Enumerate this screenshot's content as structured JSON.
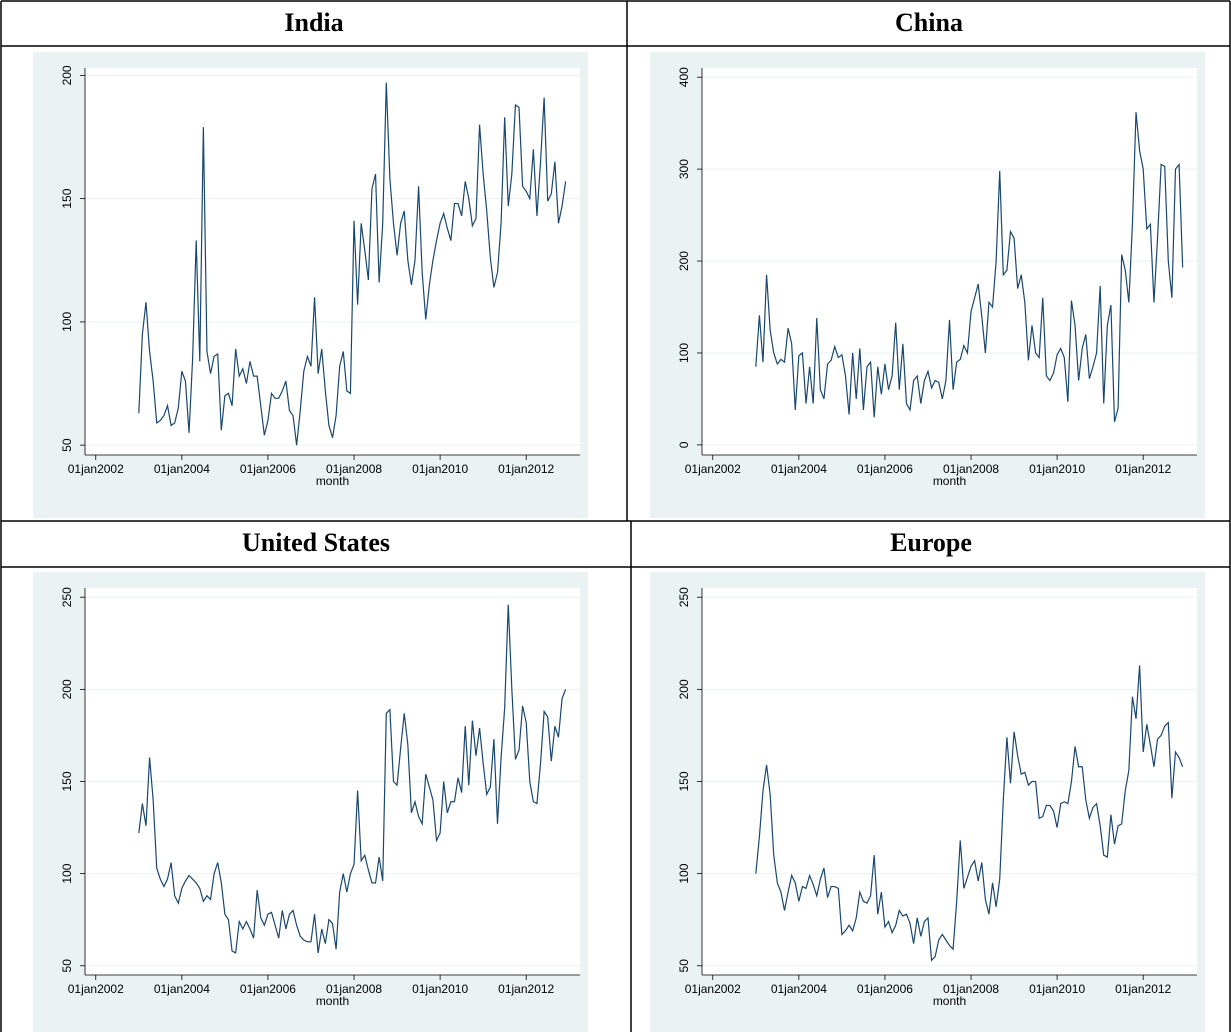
{
  "chart_data": [
    {
      "type": "line",
      "title": "India",
      "x_label": "month",
      "color": "#1a476f",
      "grid": true,
      "xlim": [
        "01oct2001",
        "01apr2013"
      ],
      "xticks": [
        "01jan2002",
        "01jan2004",
        "01jan2006",
        "01jan2008",
        "01jan2010",
        "01jan2012"
      ],
      "ylim": [
        46,
        203
      ],
      "yticks": [
        50,
        100,
        150,
        200
      ],
      "x": [
        "01jan2003",
        "01feb2003",
        "01mar2003",
        "01apr2003",
        "01may2003",
        "01jun2003",
        "01jul2003",
        "01aug2003",
        "01sep2003",
        "01oct2003",
        "01nov2003",
        "01dec2003",
        "01jan2004",
        "01feb2004",
        "01mar2004",
        "01apr2004",
        "01may2004",
        "01jun2004",
        "01jul2004",
        "01aug2004",
        "01sep2004",
        "01oct2004",
        "01nov2004",
        "01dec2004",
        "01jan2005",
        "01feb2005",
        "01mar2005",
        "01apr2005",
        "01may2005",
        "01jun2005",
        "01jul2005",
        "01aug2005",
        "01sep2005",
        "01oct2005",
        "01nov2005",
        "01dec2005",
        "01jan2006",
        "01feb2006",
        "01mar2006",
        "01apr2006",
        "01may2006",
        "01jun2006",
        "01jul2006",
        "01aug2006",
        "01sep2006",
        "01oct2006",
        "01nov2006",
        "01dec2006",
        "01jan2007",
        "01feb2007",
        "01mar2007",
        "01apr2007",
        "01may2007",
        "01jun2007",
        "01jul2007",
        "01aug2007",
        "01sep2007",
        "01oct2007",
        "01nov2007",
        "01dec2007",
        "01jan2008",
        "01feb2008",
        "01mar2008",
        "01apr2008",
        "01may2008",
        "01jun2008",
        "01jul2008",
        "01aug2008",
        "01sep2008",
        "01oct2008",
        "01nov2008",
        "01dec2008",
        "01jan2009",
        "01feb2009",
        "01mar2009",
        "01apr2009",
        "01may2009",
        "01jun2009",
        "01jul2009",
        "01aug2009",
        "01sep2009",
        "01oct2009",
        "01nov2009",
        "01dec2009",
        "01jan2010",
        "01feb2010",
        "01mar2010",
        "01apr2010",
        "01may2010",
        "01jun2010",
        "01jul2010",
        "01aug2010",
        "01sep2010",
        "01oct2010",
        "01nov2010",
        "01dec2010",
        "01jan2011",
        "01feb2011",
        "01mar2011",
        "01apr2011",
        "01may2011",
        "01jun2011",
        "01jul2011",
        "01aug2011",
        "01sep2011",
        "01oct2011",
        "01nov2011",
        "01dec2011",
        "01jan2012",
        "01feb2012",
        "01mar2012",
        "01apr2012",
        "01may2012",
        "01jun2012",
        "01jul2012",
        "01aug2012",
        "01sep2012",
        "01oct2012",
        "01nov2012",
        "01dec2012"
      ],
      "values": [
        63,
        95,
        108,
        88,
        76,
        59,
        60,
        62,
        66,
        58,
        59,
        65,
        80,
        76,
        55,
        85,
        133,
        84,
        179,
        88,
        79,
        86,
        87,
        56,
        70,
        71,
        66,
        89,
        78,
        81,
        75,
        84,
        78,
        78,
        66,
        54,
        60,
        71,
        69,
        69,
        72,
        76,
        64,
        62,
        50,
        64,
        80,
        86,
        82,
        110,
        79,
        89,
        72,
        58,
        53,
        62,
        82,
        88,
        72,
        71,
        141,
        107,
        140,
        129,
        117,
        154,
        160,
        116,
        140,
        197,
        158,
        140,
        127,
        140,
        145,
        125,
        115,
        125,
        155,
        120,
        101,
        115,
        125,
        133,
        140,
        144,
        138,
        133,
        148,
        148,
        143,
        157,
        150,
        139,
        142,
        180,
        160,
        145,
        126,
        114,
        120,
        140,
        183,
        147,
        160,
        188,
        187,
        155,
        153,
        150,
        170,
        143,
        165,
        191,
        149,
        152,
        165,
        140,
        147,
        157
      ]
    },
    {
      "type": "line",
      "title": "China",
      "x_label": "month",
      "color": "#1a476f",
      "grid": true,
      "xlim": [
        "01oct2001",
        "01apr2013"
      ],
      "xticks": [
        "01jan2002",
        "01jan2004",
        "01jan2006",
        "01jan2008",
        "01jan2010",
        "01jan2012"
      ],
      "ylim": [
        -11,
        410
      ],
      "yticks": [
        0,
        100,
        200,
        300,
        400
      ],
      "x": [
        "01jan2003",
        "01feb2003",
        "01mar2003",
        "01apr2003",
        "01may2003",
        "01jun2003",
        "01jul2003",
        "01aug2003",
        "01sep2003",
        "01oct2003",
        "01nov2003",
        "01dec2003",
        "01jan2004",
        "01feb2004",
        "01mar2004",
        "01apr2004",
        "01may2004",
        "01jun2004",
        "01jul2004",
        "01aug2004",
        "01sep2004",
        "01oct2004",
        "01nov2004",
        "01dec2004",
        "01jan2005",
        "01feb2005",
        "01mar2005",
        "01apr2005",
        "01may2005",
        "01jun2005",
        "01jul2005",
        "01aug2005",
        "01sep2005",
        "01oct2005",
        "01nov2005",
        "01dec2005",
        "01jan2006",
        "01feb2006",
        "01mar2006",
        "01apr2006",
        "01may2006",
        "01jun2006",
        "01jul2006",
        "01aug2006",
        "01sep2006",
        "01oct2006",
        "01nov2006",
        "01dec2006",
        "01jan2007",
        "01feb2007",
        "01mar2007",
        "01apr2007",
        "01may2007",
        "01jun2007",
        "01jul2007",
        "01aug2007",
        "01sep2007",
        "01oct2007",
        "01nov2007",
        "01dec2007",
        "01jan2008",
        "01feb2008",
        "01mar2008",
        "01apr2008",
        "01may2008",
        "01jun2008",
        "01jul2008",
        "01aug2008",
        "01sep2008",
        "01oct2008",
        "01nov2008",
        "01dec2008",
        "01jan2009",
        "01feb2009",
        "01mar2009",
        "01apr2009",
        "01may2009",
        "01jun2009",
        "01jul2009",
        "01aug2009",
        "01sep2009",
        "01oct2009",
        "01nov2009",
        "01dec2009",
        "01jan2010",
        "01feb2010",
        "01mar2010",
        "01apr2010",
        "01may2010",
        "01jun2010",
        "01jul2010",
        "01aug2010",
        "01sep2010",
        "01oct2010",
        "01nov2010",
        "01dec2010",
        "01jan2011",
        "01feb2011",
        "01mar2011",
        "01apr2011",
        "01may2011",
        "01jun2011",
        "01jul2011",
        "01aug2011",
        "01sep2011",
        "01oct2011",
        "01nov2011",
        "01dec2011",
        "01jan2012",
        "01feb2012",
        "01mar2012",
        "01apr2012",
        "01may2012",
        "01jun2012",
        "01jul2012",
        "01aug2012",
        "01sep2012",
        "01oct2012",
        "01nov2012",
        "01dec2012"
      ],
      "values": [
        85,
        141,
        90,
        185,
        125,
        100,
        88,
        93,
        90,
        127,
        110,
        38,
        97,
        100,
        45,
        85,
        45,
        138,
        60,
        50,
        88,
        92,
        107,
        95,
        98,
        75,
        33,
        100,
        50,
        105,
        38,
        85,
        90,
        30,
        85,
        55,
        88,
        60,
        75,
        133,
        60,
        110,
        45,
        38,
        70,
        75,
        45,
        70,
        80,
        62,
        70,
        68,
        50,
        70,
        136,
        60,
        90,
        93,
        108,
        100,
        145,
        160,
        175,
        140,
        100,
        155,
        150,
        200,
        298,
        185,
        190,
        232,
        225,
        170,
        185,
        155,
        92,
        130,
        100,
        95,
        160,
        75,
        70,
        78,
        98,
        105,
        95,
        47,
        157,
        130,
        70,
        105,
        120,
        72,
        85,
        100,
        173,
        45,
        130,
        152,
        25,
        40,
        207,
        190,
        155,
        240,
        362,
        320,
        300,
        235,
        240,
        155,
        225,
        305,
        303,
        200,
        160,
        300,
        305,
        193
      ]
    },
    {
      "type": "line",
      "title": "United States",
      "x_label": "month",
      "color": "#1a476f",
      "grid": true,
      "xlim": [
        "01oct2001",
        "01apr2013"
      ],
      "xticks": [
        "01jan2002",
        "01jan2004",
        "01jan2006",
        "01jan2008",
        "01jan2010",
        "01jan2012"
      ],
      "ylim": [
        45,
        255
      ],
      "yticks": [
        50,
        100,
        150,
        200,
        250
      ],
      "x": [
        "01jan2003",
        "01feb2003",
        "01mar2003",
        "01apr2003",
        "01may2003",
        "01jun2003",
        "01jul2003",
        "01aug2003",
        "01sep2003",
        "01oct2003",
        "01nov2003",
        "01dec2003",
        "01jan2004",
        "01feb2004",
        "01mar2004",
        "01apr2004",
        "01may2004",
        "01jun2004",
        "01jul2004",
        "01aug2004",
        "01sep2004",
        "01oct2004",
        "01nov2004",
        "01dec2004",
        "01jan2005",
        "01feb2005",
        "01mar2005",
        "01apr2005",
        "01may2005",
        "01jun2005",
        "01jul2005",
        "01aug2005",
        "01sep2005",
        "01oct2005",
        "01nov2005",
        "01dec2005",
        "01jan2006",
        "01feb2006",
        "01mar2006",
        "01apr2006",
        "01may2006",
        "01jun2006",
        "01jul2006",
        "01aug2006",
        "01sep2006",
        "01oct2006",
        "01nov2006",
        "01dec2006",
        "01jan2007",
        "01feb2007",
        "01mar2007",
        "01apr2007",
        "01may2007",
        "01jun2007",
        "01jul2007",
        "01aug2007",
        "01sep2007",
        "01oct2007",
        "01nov2007",
        "01dec2007",
        "01jan2008",
        "01feb2008",
        "01mar2008",
        "01apr2008",
        "01may2008",
        "01jun2008",
        "01jul2008",
        "01aug2008",
        "01sep2008",
        "01oct2008",
        "01nov2008",
        "01dec2008",
        "01jan2009",
        "01feb2009",
        "01mar2009",
        "01apr2009",
        "01may2009",
        "01jun2009",
        "01jul2009",
        "01aug2009",
        "01sep2009",
        "01oct2009",
        "01nov2009",
        "01dec2009",
        "01jan2010",
        "01feb2010",
        "01mar2010",
        "01apr2010",
        "01may2010",
        "01jun2010",
        "01jul2010",
        "01aug2010",
        "01sep2010",
        "01oct2010",
        "01nov2010",
        "01dec2010",
        "01jan2011",
        "01feb2011",
        "01mar2011",
        "01apr2011",
        "01may2011",
        "01jun2011",
        "01jul2011",
        "01aug2011",
        "01sep2011",
        "01oct2011",
        "01nov2011",
        "01dec2011",
        "01jan2012",
        "01feb2012",
        "01mar2012",
        "01apr2012",
        "01may2012",
        "01jun2012",
        "01jul2012",
        "01aug2012",
        "01sep2012",
        "01oct2012",
        "01nov2012",
        "01dec2012"
      ],
      "values": [
        122,
        138,
        126,
        163,
        140,
        103,
        97,
        93,
        97,
        106,
        88,
        84,
        92,
        96,
        99,
        97,
        95,
        92,
        85,
        88,
        86,
        100,
        106,
        95,
        78,
        75,
        58,
        57,
        74,
        70,
        74,
        70,
        65,
        91,
        76,
        72,
        78,
        79,
        72,
        65,
        80,
        70,
        78,
        80,
        72,
        66,
        64,
        63,
        63,
        78,
        57,
        70,
        62,
        75,
        73,
        59,
        90,
        100,
        90,
        100,
        105,
        145,
        107,
        110,
        102,
        95,
        95,
        109,
        96,
        187,
        189,
        150,
        148,
        168,
        187,
        170,
        133,
        139,
        131,
        127,
        154,
        147,
        140,
        118,
        122,
        150,
        133,
        139,
        139,
        152,
        144,
        180,
        148,
        183,
        164,
        179,
        160,
        143,
        147,
        173,
        127,
        163,
        190,
        246,
        200,
        162,
        167,
        191,
        182,
        150,
        139,
        138,
        160,
        188,
        185,
        161,
        180,
        174,
        195,
        200
      ]
    },
    {
      "type": "line",
      "title": "Europe",
      "x_label": "month",
      "color": "#1a476f",
      "grid": true,
      "xlim": [
        "01oct2001",
        "01apr2013"
      ],
      "xticks": [
        "01jan2002",
        "01jan2004",
        "01jan2006",
        "01jan2008",
        "01jan2010",
        "01jan2012"
      ],
      "ylim": [
        45,
        255
      ],
      "yticks": [
        50,
        100,
        150,
        200,
        250
      ],
      "x": [
        "01jan2003",
        "01feb2003",
        "01mar2003",
        "01apr2003",
        "01may2003",
        "01jun2003",
        "01jul2003",
        "01aug2003",
        "01sep2003",
        "01oct2003",
        "01nov2003",
        "01dec2003",
        "01jan2004",
        "01feb2004",
        "01mar2004",
        "01apr2004",
        "01may2004",
        "01jun2004",
        "01jul2004",
        "01aug2004",
        "01sep2004",
        "01oct2004",
        "01nov2004",
        "01dec2004",
        "01jan2005",
        "01feb2005",
        "01mar2005",
        "01apr2005",
        "01may2005",
        "01jun2005",
        "01jul2005",
        "01aug2005",
        "01sep2005",
        "01oct2005",
        "01nov2005",
        "01dec2005",
        "01jan2006",
        "01feb2006",
        "01mar2006",
        "01apr2006",
        "01may2006",
        "01jun2006",
        "01jul2006",
        "01aug2006",
        "01sep2006",
        "01oct2006",
        "01nov2006",
        "01dec2006",
        "01jan2007",
        "01feb2007",
        "01mar2007",
        "01apr2007",
        "01may2007",
        "01jun2007",
        "01jul2007",
        "01aug2007",
        "01sep2007",
        "01oct2007",
        "01nov2007",
        "01dec2007",
        "01jan2008",
        "01feb2008",
        "01mar2008",
        "01apr2008",
        "01may2008",
        "01jun2008",
        "01jul2008",
        "01aug2008",
        "01sep2008",
        "01oct2008",
        "01nov2008",
        "01dec2008",
        "01jan2009",
        "01feb2009",
        "01mar2009",
        "01apr2009",
        "01may2009",
        "01jun2009",
        "01jul2009",
        "01aug2009",
        "01sep2009",
        "01oct2009",
        "01nov2009",
        "01dec2009",
        "01jan2010",
        "01feb2010",
        "01mar2010",
        "01apr2010",
        "01may2010",
        "01jun2010",
        "01jul2010",
        "01aug2010",
        "01sep2010",
        "01oct2010",
        "01nov2010",
        "01dec2010",
        "01jan2011",
        "01feb2011",
        "01mar2011",
        "01apr2011",
        "01may2011",
        "01jun2011",
        "01jul2011",
        "01aug2011",
        "01sep2011",
        "01oct2011",
        "01nov2011",
        "01dec2011",
        "01jan2012",
        "01feb2012",
        "01mar2012",
        "01apr2012",
        "01may2012",
        "01jun2012",
        "01jul2012",
        "01aug2012",
        "01sep2012",
        "01oct2012",
        "01nov2012",
        "01dec2012"
      ],
      "values": [
        100,
        120,
        145,
        159,
        143,
        110,
        95,
        90,
        80,
        90,
        99,
        95,
        85,
        93,
        92,
        99,
        94,
        88,
        97,
        103,
        87,
        93,
        93,
        92,
        67,
        69,
        72,
        69,
        76,
        90,
        85,
        84,
        88,
        110,
        78,
        90,
        71,
        74,
        68,
        72,
        80,
        77,
        78,
        73,
        62,
        76,
        66,
        74,
        76,
        53,
        55,
        64,
        67,
        64,
        61,
        59,
        85,
        118,
        92,
        98,
        104,
        107,
        96,
        106,
        86,
        78,
        95,
        82,
        97,
        140,
        174,
        149,
        177,
        164,
        154,
        155,
        148,
        150,
        150,
        130,
        131,
        137,
        137,
        134,
        125,
        138,
        139,
        138,
        150,
        169,
        158,
        158,
        140,
        130,
        136,
        138,
        126,
        110,
        109,
        132,
        116,
        126,
        127,
        145,
        156,
        196,
        184,
        213,
        166,
        181,
        170,
        158,
        173,
        175,
        180,
        182,
        141,
        166,
        163,
        158
      ]
    }
  ]
}
